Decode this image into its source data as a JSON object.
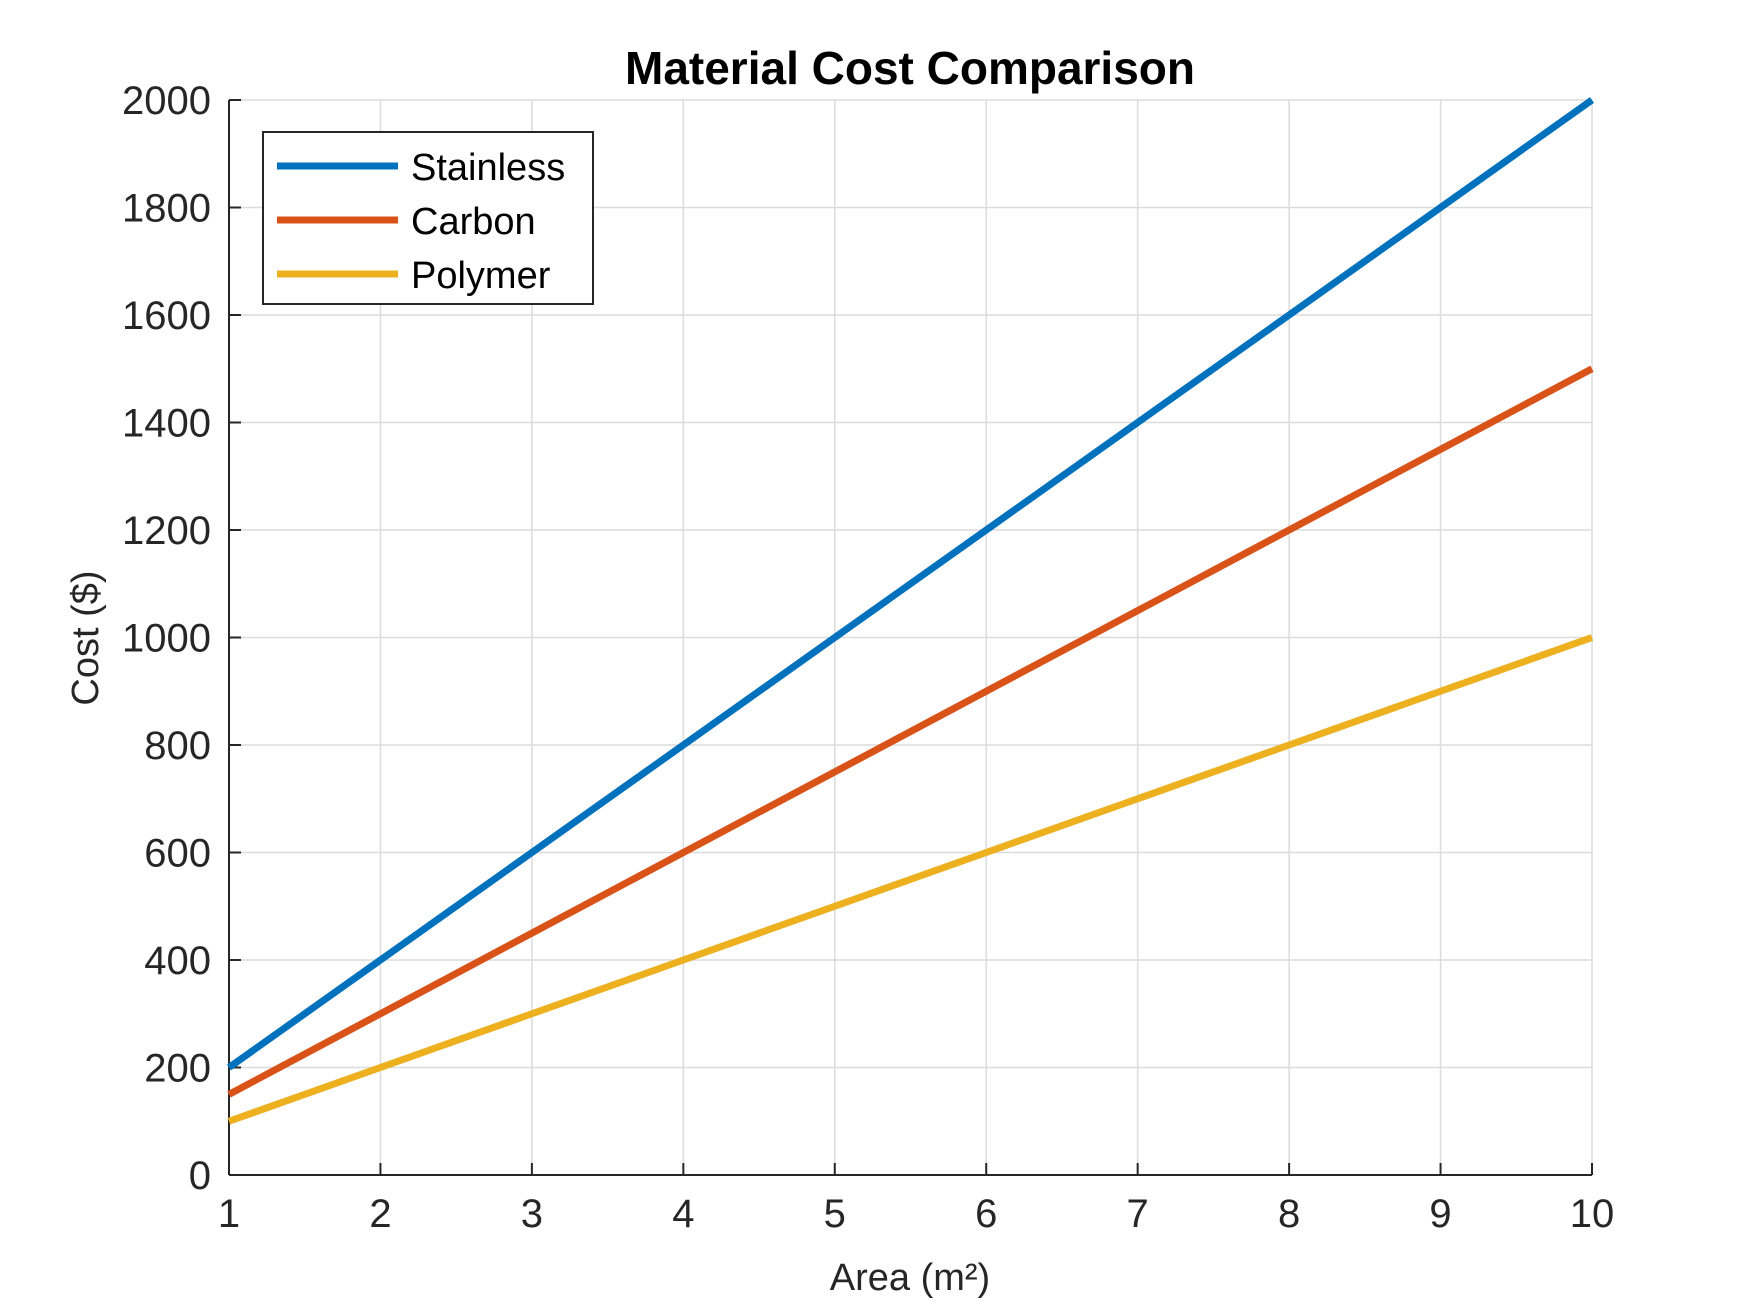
{
  "chart_data": {
    "type": "line",
    "title": "Material Cost Comparison",
    "xlabel": "Area (m²)",
    "ylabel": "Cost ($)",
    "x": [
      1,
      2,
      3,
      4,
      5,
      6,
      7,
      8,
      9,
      10
    ],
    "xlim": [
      1,
      10
    ],
    "ylim": [
      0,
      2000
    ],
    "xticks": [
      1,
      2,
      3,
      4,
      5,
      6,
      7,
      8,
      9,
      10
    ],
    "yticks": [
      0,
      200,
      400,
      600,
      800,
      1000,
      1200,
      1400,
      1600,
      1800,
      2000
    ],
    "grid": true,
    "legend_location": "top-left",
    "series": [
      {
        "name": "Stainless",
        "color": "#0072BD",
        "values": [
          200,
          400,
          600,
          800,
          1000,
          1200,
          1400,
          1600,
          1800,
          2000
        ]
      },
      {
        "name": "Carbon",
        "color": "#D95319",
        "values": [
          150,
          300,
          450,
          600,
          750,
          900,
          1050,
          1200,
          1350,
          1500
        ]
      },
      {
        "name": "Polymer",
        "color": "#EDB120",
        "values": [
          100,
          200,
          300,
          400,
          500,
          600,
          700,
          800,
          900,
          1000
        ]
      }
    ]
  }
}
